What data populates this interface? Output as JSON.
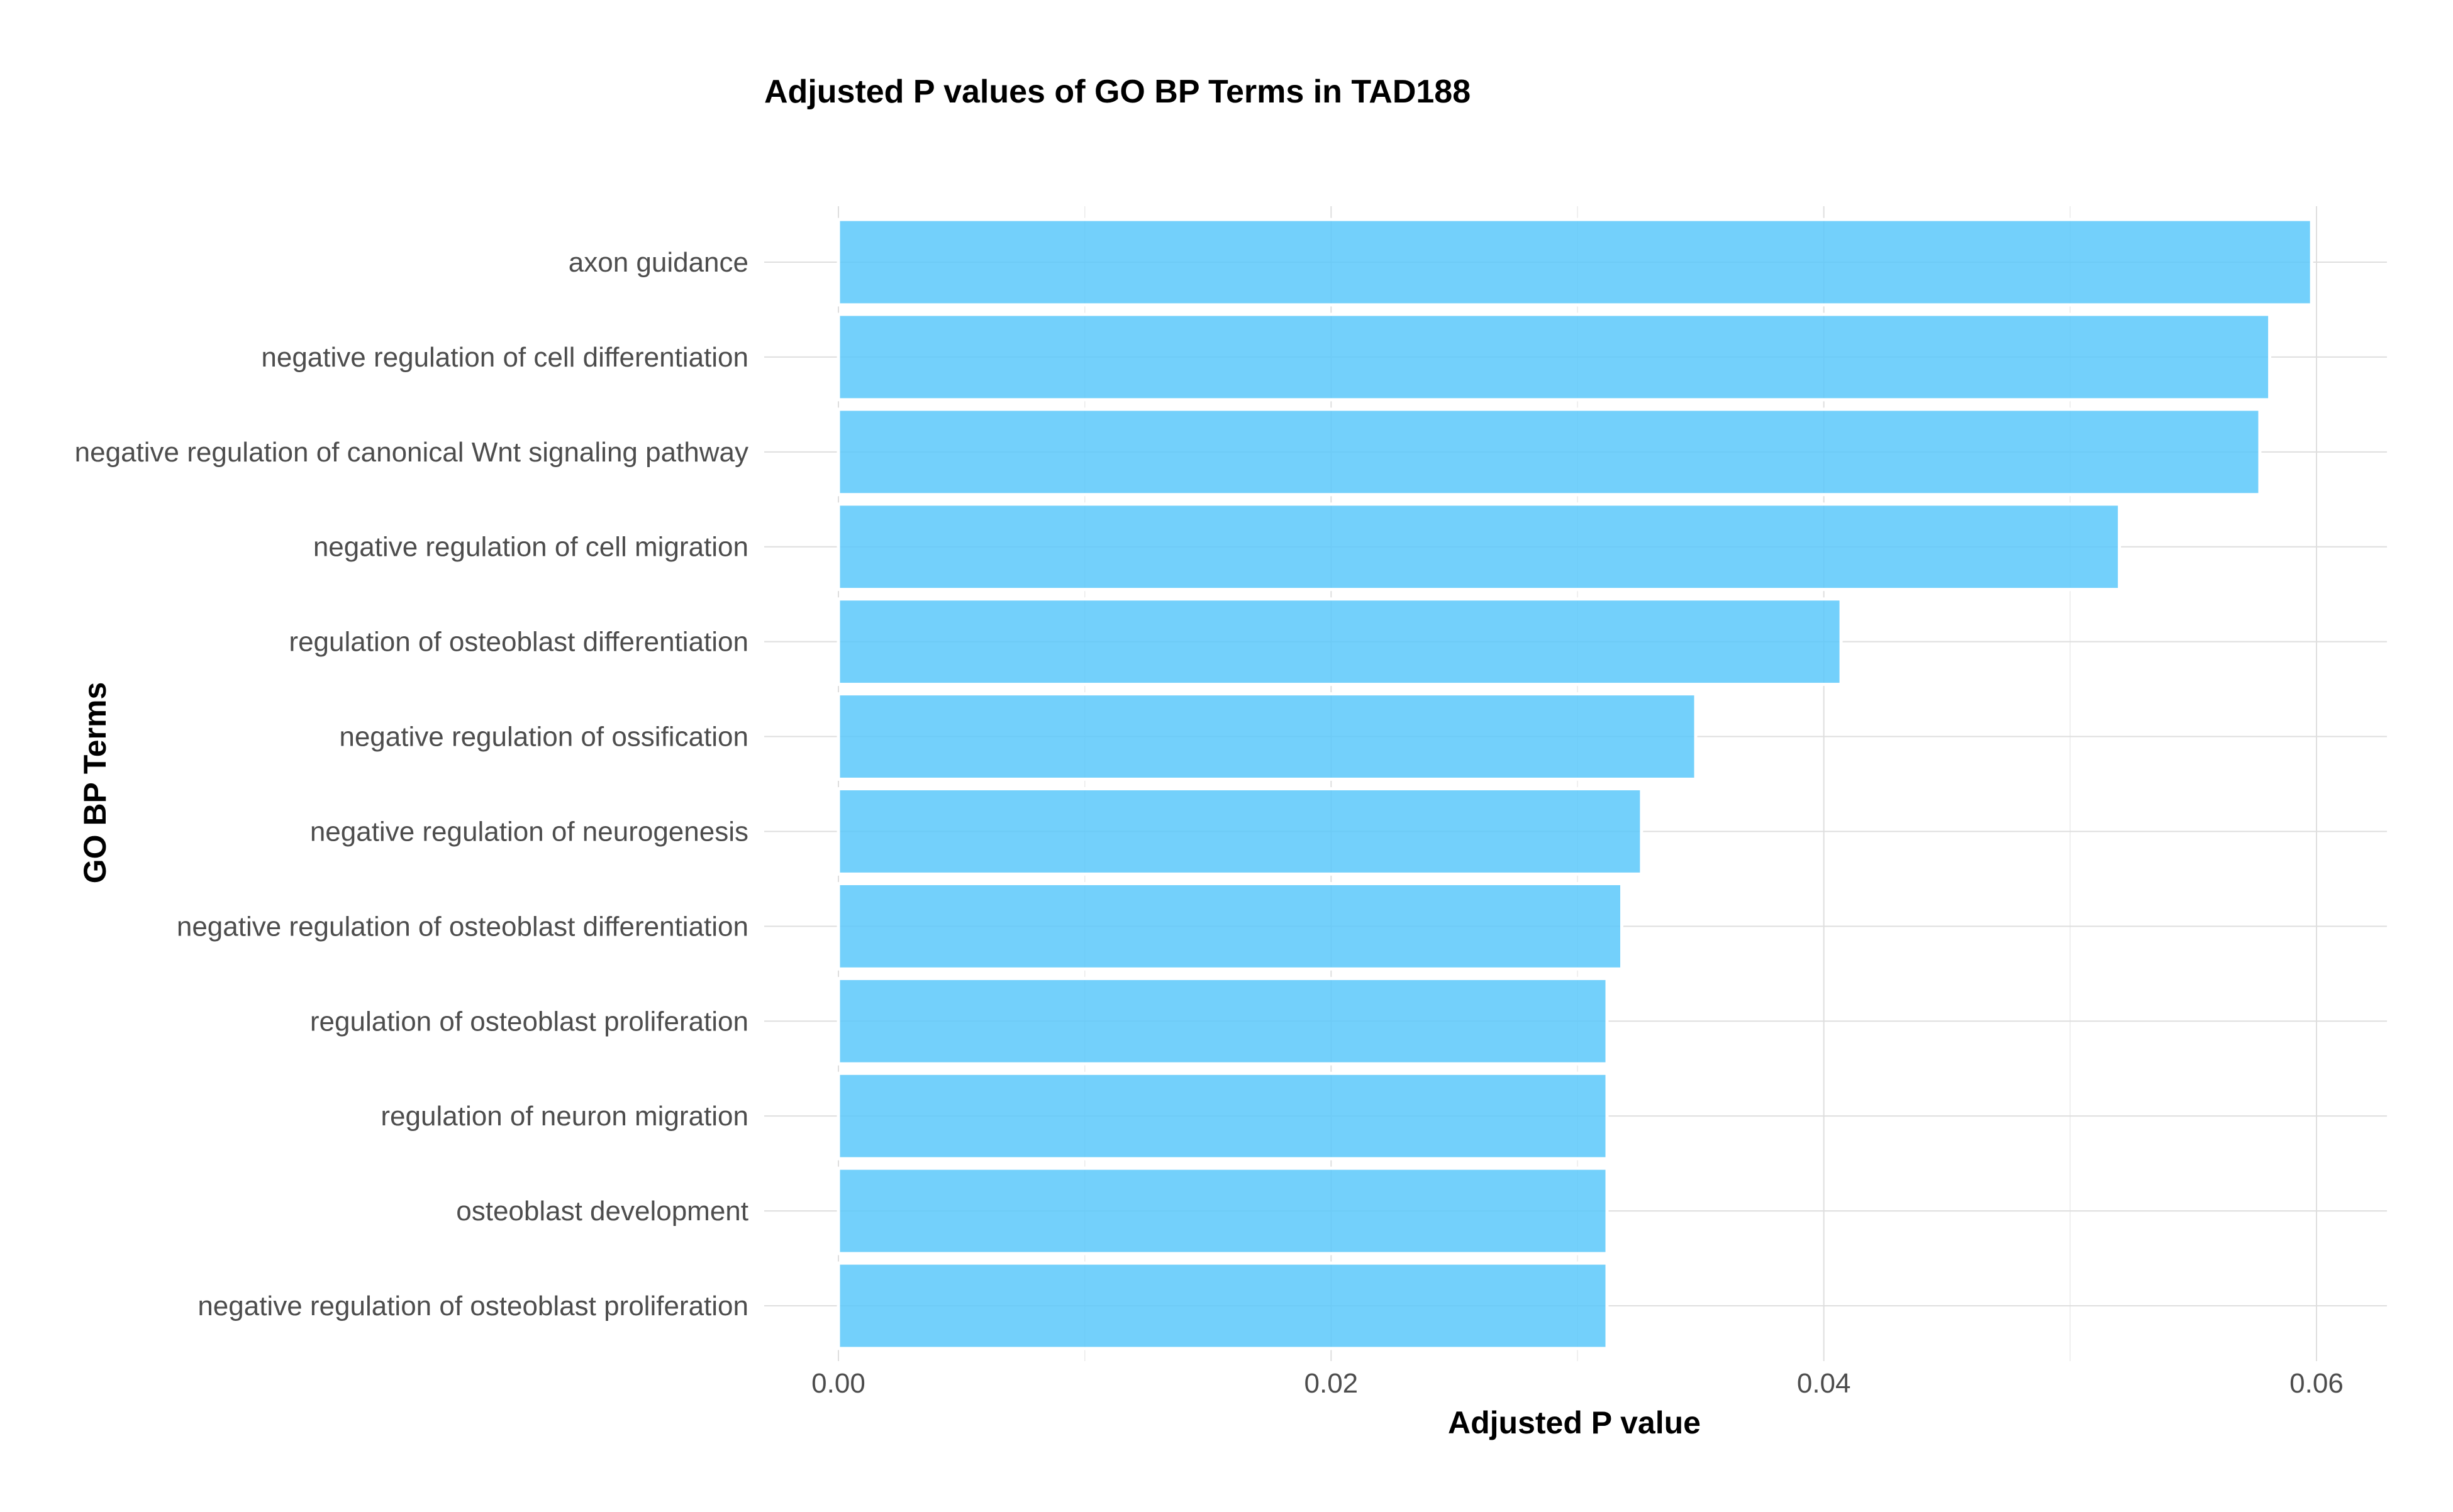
{
  "chart_data": {
    "type": "bar",
    "orientation": "horizontal",
    "title": "Adjusted P values of GO BP Terms in TAD188",
    "xlabel": "Adjusted P value",
    "ylabel": "GO BP Terms",
    "xlim": [
      0,
      0.0625
    ],
    "xticks": [
      0,
      0.02,
      0.04,
      0.06
    ],
    "xtick_labels": [
      "0.00",
      "0.02",
      "0.04",
      "0.06"
    ],
    "grid": true,
    "legend": "none",
    "bar_color": "#5ac8fa",
    "bar_outline_color": "#ffffff",
    "categories": [
      "axon guidance",
      "negative regulation of cell differentiation",
      "negative regulation of canonical Wnt signaling pathway",
      "negative regulation of cell migration",
      "regulation of osteoblast differentiation",
      "negative regulation of ossification",
      "negative regulation of neurogenesis",
      "negative regulation of osteoblast differentiation",
      "regulation of osteoblast proliferation",
      "regulation of neuron migration",
      "osteoblast development",
      "negative regulation of osteoblast proliferation"
    ],
    "values": [
      0.0598,
      0.0581,
      0.0577,
      0.052,
      0.0407,
      0.0348,
      0.0326,
      0.0318,
      0.0312,
      0.0312,
      0.0312,
      0.0312
    ]
  }
}
